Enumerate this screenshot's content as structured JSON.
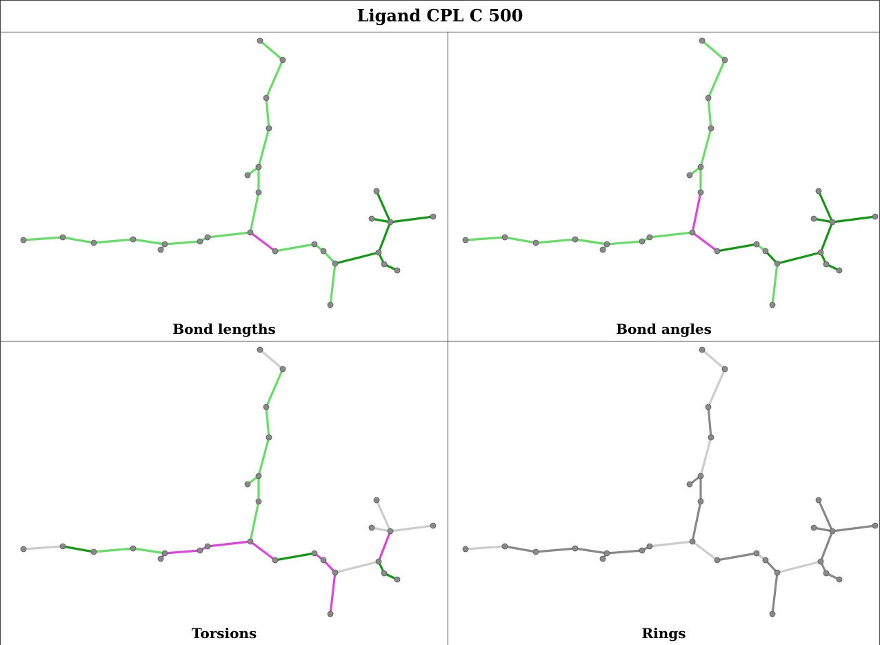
{
  "title": "Ligand CPL C 500",
  "panels": [
    {
      "label": "Bond lengths",
      "color_key": "bond_lengths"
    },
    {
      "label": "Bond angles",
      "color_key": "bond_angles"
    },
    {
      "label": "Torsions",
      "color_key": "torsions"
    },
    {
      "label": "Rings",
      "color_key": "rings"
    }
  ],
  "colors": {
    "green_light": "#66dd66",
    "green_dark": "#119911",
    "magenta": "#dd44dd",
    "grey_light": "#cccccc",
    "grey_dark": "#888888",
    "atom": "#8a8a8a"
  }
}
